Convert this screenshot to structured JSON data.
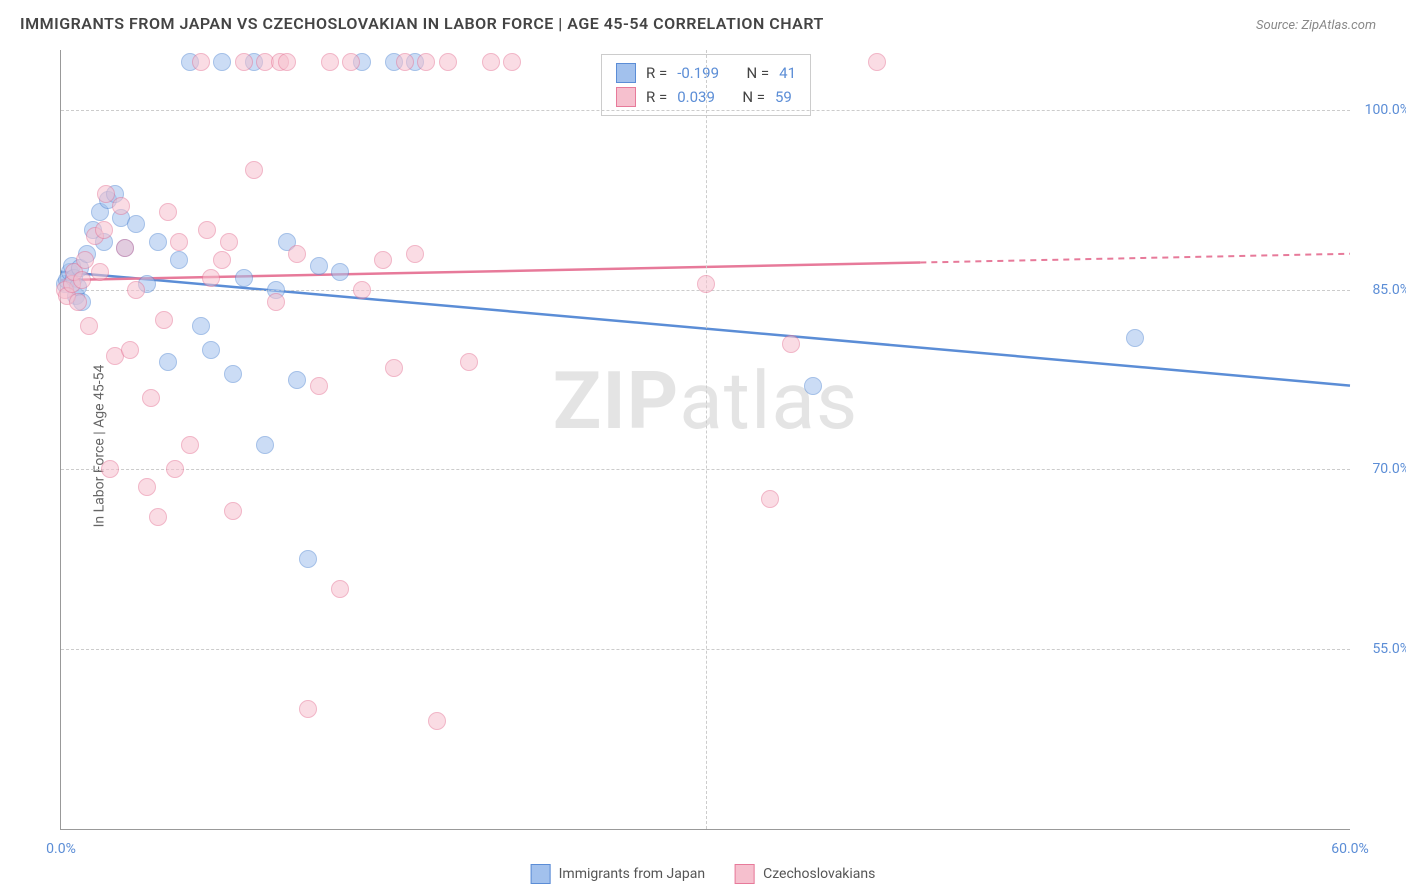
{
  "title": "IMMIGRANTS FROM JAPAN VS CZECHOSLOVAKIAN IN LABOR FORCE | AGE 45-54 CORRELATION CHART",
  "source_prefix": "Source: ",
  "source": "ZipAtlas.com",
  "ylabel": "In Labor Force | Age 45-54",
  "watermark_strong": "ZIP",
  "watermark_light": "atlas",
  "chart": {
    "type": "scatter",
    "xlim": [
      0,
      60
    ],
    "ylim": [
      40,
      105
    ],
    "xticks": [
      0,
      60
    ],
    "xtick_labels": [
      "0.0%",
      "60.0%"
    ],
    "yticks": [
      55,
      70,
      85,
      100
    ],
    "ytick_labels": [
      "55.0%",
      "70.0%",
      "85.0%",
      "100.0%"
    ],
    "xgrid": [
      30
    ],
    "background_color": "#ffffff",
    "grid_color": "#cccccc",
    "axis_color": "#999999",
    "marker_radius": 9,
    "marker_opacity": 0.55
  },
  "series": [
    {
      "id": "japan",
      "label": "Immigrants from Japan",
      "color_fill": "#a2c1ed",
      "color_stroke": "#5b8dd6",
      "R_label": "R =",
      "R": "-0.199",
      "N_label": "N =",
      "N": "41",
      "trend": {
        "y_at_x0": 86.5,
        "y_at_x60": 77.0,
        "solid_until_x": 60
      },
      "points": [
        [
          0.2,
          85.5
        ],
        [
          0.3,
          85.8
        ],
        [
          0.4,
          86.5
        ],
        [
          0.5,
          87.0
        ],
        [
          0.6,
          86.0
        ],
        [
          0.7,
          84.5
        ],
        [
          0.8,
          85.2
        ],
        [
          0.9,
          86.8
        ],
        [
          1.2,
          88.0
        ],
        [
          1.5,
          90.0
        ],
        [
          1.8,
          91.5
        ],
        [
          2.0,
          89.0
        ],
        [
          2.2,
          92.5
        ],
        [
          2.8,
          91.0
        ],
        [
          3.0,
          88.5
        ],
        [
          3.5,
          90.5
        ],
        [
          4.0,
          85.5
        ],
        [
          4.5,
          89.0
        ],
        [
          5.0,
          79.0
        ],
        [
          5.5,
          87.5
        ],
        [
          6.0,
          104.0
        ],
        [
          6.5,
          82.0
        ],
        [
          7.0,
          80.0
        ],
        [
          7.5,
          104.0
        ],
        [
          8.0,
          78.0
        ],
        [
          8.5,
          86.0
        ],
        [
          9.0,
          104.0
        ],
        [
          9.5,
          72.0
        ],
        [
          10.0,
          85.0
        ],
        [
          10.5,
          89.0
        ],
        [
          11.0,
          77.5
        ],
        [
          11.5,
          62.5
        ],
        [
          12.0,
          87.0
        ],
        [
          13.0,
          86.5
        ],
        [
          14.0,
          104.0
        ],
        [
          15.5,
          104.0
        ],
        [
          16.5,
          104.0
        ],
        [
          35.0,
          77.0
        ],
        [
          50.0,
          81.0
        ],
        [
          1.0,
          84.0
        ],
        [
          2.5,
          93.0
        ]
      ]
    },
    {
      "id": "czech",
      "label": "Czechoslovakians",
      "color_fill": "#f6c0ce",
      "color_stroke": "#e77a9a",
      "R_label": "R =",
      "R": "0.039",
      "N_label": "N =",
      "N": "59",
      "trend": {
        "y_at_x0": 85.8,
        "y_at_x60": 88.0,
        "solid_until_x": 40
      },
      "points": [
        [
          0.2,
          85.0
        ],
        [
          0.3,
          84.5
        ],
        [
          0.5,
          85.5
        ],
        [
          0.6,
          86.5
        ],
        [
          0.8,
          84.0
        ],
        [
          1.0,
          85.8
        ],
        [
          1.3,
          82.0
        ],
        [
          1.6,
          89.5
        ],
        [
          1.8,
          86.5
        ],
        [
          2.0,
          90.0
        ],
        [
          2.3,
          70.0
        ],
        [
          2.5,
          79.5
        ],
        [
          2.8,
          92.0
        ],
        [
          3.0,
          88.5
        ],
        [
          3.5,
          85.0
        ],
        [
          4.0,
          68.5
        ],
        [
          4.2,
          76.0
        ],
        [
          4.5,
          66.0
        ],
        [
          5.0,
          91.5
        ],
        [
          5.3,
          70.0
        ],
        [
          5.5,
          89.0
        ],
        [
          6.0,
          72.0
        ],
        [
          6.5,
          104.0
        ],
        [
          7.0,
          86.0
        ],
        [
          7.5,
          87.5
        ],
        [
          7.8,
          89.0
        ],
        [
          8.0,
          66.5
        ],
        [
          8.5,
          104.0
        ],
        [
          9.0,
          95.0
        ],
        [
          9.5,
          104.0
        ],
        [
          10.0,
          84.0
        ],
        [
          10.2,
          104.0
        ],
        [
          10.5,
          104.0
        ],
        [
          11.0,
          88.0
        ],
        [
          11.5,
          50.0
        ],
        [
          12.0,
          77.0
        ],
        [
          12.5,
          104.0
        ],
        [
          13.0,
          60.0
        ],
        [
          13.5,
          104.0
        ],
        [
          14.0,
          85.0
        ],
        [
          15.0,
          87.5
        ],
        [
          15.5,
          78.5
        ],
        [
          16.0,
          104.0
        ],
        [
          16.5,
          88.0
        ],
        [
          17.0,
          104.0
        ],
        [
          17.5,
          49.0
        ],
        [
          18.0,
          104.0
        ],
        [
          19.0,
          79.0
        ],
        [
          20.0,
          104.0
        ],
        [
          21.0,
          104.0
        ],
        [
          30.0,
          85.5
        ],
        [
          33.0,
          67.5
        ],
        [
          34.0,
          80.5
        ],
        [
          38.0,
          104.0
        ],
        [
          1.1,
          87.5
        ],
        [
          2.1,
          93.0
        ],
        [
          3.2,
          80.0
        ],
        [
          4.8,
          82.5
        ],
        [
          6.8,
          90.0
        ]
      ]
    }
  ]
}
